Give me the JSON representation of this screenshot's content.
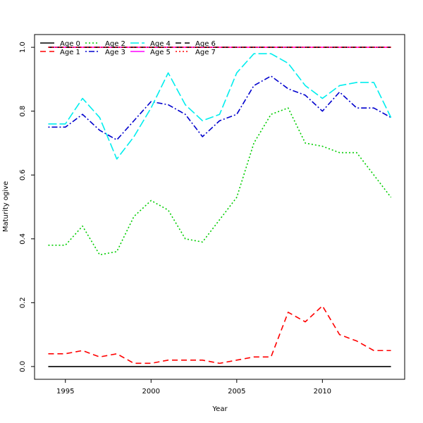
{
  "chart_data": {
    "type": "line",
    "title": "",
    "xlabel": "Year",
    "ylabel": "Maturity ogive",
    "xlim": [
      1993.2,
      2014.8
    ],
    "ylim": [
      -0.04,
      1.04
    ],
    "x_ticks": [
      1995,
      2000,
      2005,
      2010
    ],
    "y_ticks": [
      0.0,
      0.2,
      0.4,
      0.6,
      0.8,
      1.0
    ],
    "x_tick_labels": [
      "1995",
      "2000",
      "2005",
      "2010"
    ],
    "y_tick_labels": [
      "0.0",
      "0.2",
      "0.4",
      "0.6",
      "0.8",
      "1.0"
    ],
    "grid": false,
    "legend_position": "top-left",
    "x": [
      1994,
      1995,
      1996,
      1997,
      1998,
      1999,
      2000,
      2001,
      2002,
      2003,
      2004,
      2005,
      2006,
      2007,
      2008,
      2009,
      2010,
      2011,
      2012,
      2013,
      2014
    ],
    "series": [
      {
        "name": "Age 0",
        "color": "#000000",
        "dash": "solid",
        "values": [
          0,
          0,
          0,
          0,
          0,
          0,
          0,
          0,
          0,
          0,
          0,
          0,
          0,
          0,
          0,
          0,
          0,
          0,
          0,
          0,
          0
        ]
      },
      {
        "name": "Age 1",
        "color": "#ff0000",
        "dash": "dashed",
        "values": [
          0.04,
          0.04,
          0.05,
          0.03,
          0.04,
          0.01,
          0.01,
          0.02,
          0.02,
          0.02,
          0.01,
          0.02,
          0.03,
          0.03,
          0.17,
          0.14,
          0.19,
          0.1,
          0.08,
          0.05,
          0.05
        ]
      },
      {
        "name": "Age 2",
        "color": "#00cd00",
        "dash": "dotted",
        "values": [
          0.38,
          0.38,
          0.44,
          0.35,
          0.36,
          0.47,
          0.52,
          0.49,
          0.4,
          0.39,
          0.46,
          0.53,
          0.7,
          0.79,
          0.81,
          0.7,
          0.69,
          0.67,
          0.67,
          0.6,
          0.53
        ]
      },
      {
        "name": "Age 3",
        "color": "#0000cd",
        "dash": "dotdash",
        "values": [
          0.75,
          0.75,
          0.79,
          0.74,
          0.71,
          0.77,
          0.83,
          0.82,
          0.79,
          0.72,
          0.77,
          0.79,
          0.88,
          0.91,
          0.87,
          0.85,
          0.8,
          0.86,
          0.81,
          0.81,
          0.78
        ]
      },
      {
        "name": "Age 4",
        "color": "#00eeee",
        "dash": "longdash",
        "values": [
          0.76,
          0.76,
          0.84,
          0.78,
          0.65,
          0.72,
          0.81,
          0.92,
          0.82,
          0.77,
          0.79,
          0.92,
          0.98,
          0.98,
          0.95,
          0.88,
          0.84,
          0.88,
          0.89,
          0.89,
          0.78
        ]
      },
      {
        "name": "Age 5",
        "color": "#ff00ff",
        "dash": "solid",
        "values": [
          1,
          1,
          1,
          1,
          1,
          1,
          1,
          1,
          1,
          1,
          1,
          1,
          1,
          1,
          1,
          1,
          1,
          1,
          1,
          1,
          1
        ]
      },
      {
        "name": "Age 6",
        "color": "#000000",
        "dash": "dashed",
        "values": [
          1,
          1,
          1,
          1,
          1,
          1,
          1,
          1,
          1,
          1,
          1,
          1,
          1,
          1,
          1,
          1,
          1,
          1,
          1,
          1,
          1
        ]
      },
      {
        "name": "Age 7",
        "color": "#ff0000",
        "dash": "dotted",
        "values": [
          1,
          1,
          1,
          1,
          1,
          1,
          1,
          1,
          1,
          1,
          1,
          1,
          1,
          1,
          1,
          1,
          1,
          1,
          1,
          1,
          1
        ]
      }
    ]
  }
}
